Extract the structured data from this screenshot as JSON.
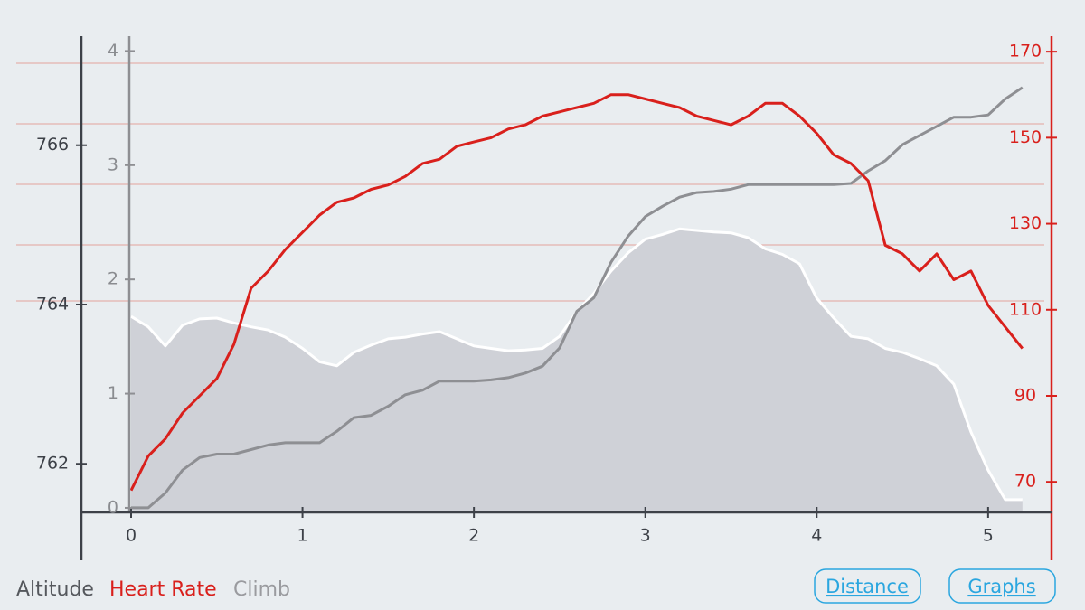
{
  "chart_data": {
    "type": "line",
    "x": [
      0,
      0.1,
      0.2,
      0.3,
      0.4,
      0.5,
      0.6,
      0.7,
      0.8,
      0.9,
      1.0,
      1.1,
      1.2,
      1.3,
      1.4,
      1.5,
      1.6,
      1.7,
      1.8,
      1.9,
      2.0,
      2.1,
      2.2,
      2.3,
      2.4,
      2.5,
      2.6,
      2.7,
      2.8,
      2.9,
      3.0,
      3.1,
      3.2,
      3.3,
      3.4,
      3.5,
      3.6,
      3.7,
      3.8,
      3.9,
      4.0,
      4.1,
      4.2,
      4.3,
      4.4,
      4.5,
      4.6,
      4.7,
      4.8,
      4.9,
      5.0,
      5.1,
      5.2
    ],
    "xlim": [
      0,
      5.37
    ],
    "xticks": [
      0,
      1,
      2,
      3,
      4,
      5
    ],
    "ylim": [
      761.39,
      767.37
    ],
    "yticks": [
      762,
      764,
      766
    ],
    "y2lim": [
      62.9,
      173.6
    ],
    "y2ticks": [
      70,
      90,
      110,
      130,
      150,
      170
    ],
    "y3lim": [
      -0.04,
      4.13
    ],
    "y3ticks": [
      0,
      1,
      2,
      3,
      4
    ],
    "series": [
      {
        "name": "Altitude",
        "color": "#ffffff",
        "fill": "#cfd1d7",
        "axis": "y",
        "values": [
          763.85,
          763.72,
          763.48,
          763.74,
          763.82,
          763.83,
          763.77,
          763.72,
          763.68,
          763.59,
          763.45,
          763.28,
          763.23,
          763.4,
          763.49,
          763.57,
          763.59,
          763.63,
          763.66,
          763.57,
          763.48,
          763.45,
          763.42,
          763.43,
          763.45,
          763.6,
          763.91,
          764.14,
          764.42,
          764.65,
          764.82,
          764.88,
          764.95,
          764.93,
          764.91,
          764.9,
          764.84,
          764.7,
          764.63,
          764.51,
          764.08,
          763.83,
          763.6,
          763.57,
          763.45,
          763.4,
          763.32,
          763.23,
          763.0,
          762.4,
          761.92,
          761.55,
          761.55
        ]
      },
      {
        "name": "Heart Rate",
        "color": "#d9201c",
        "axis": "y2",
        "values": [
          68,
          76,
          80,
          86,
          90,
          94,
          102,
          115,
          119,
          124,
          128,
          132,
          135,
          136,
          138,
          139,
          141,
          144,
          145,
          148,
          149,
          150,
          152,
          153,
          155,
          156,
          157,
          158,
          160,
          160,
          159,
          158,
          157,
          155,
          154,
          153,
          155,
          158,
          158,
          155,
          151,
          146,
          144,
          140,
          125,
          123,
          119,
          123,
          117,
          119,
          111,
          106,
          101
        ]
      },
      {
        "name": "Climb",
        "color": "#8e8f93",
        "axis": "y3",
        "values": [
          0,
          0,
          0.13,
          0.33,
          0.44,
          0.47,
          0.47,
          0.51,
          0.55,
          0.57,
          0.57,
          0.57,
          0.67,
          0.79,
          0.81,
          0.89,
          0.99,
          1.03,
          1.11,
          1.11,
          1.11,
          1.12,
          1.14,
          1.18,
          1.24,
          1.4,
          1.72,
          1.84,
          2.15,
          2.38,
          2.55,
          2.64,
          2.72,
          2.76,
          2.77,
          2.79,
          2.83,
          2.83,
          2.83,
          2.83,
          2.83,
          2.83,
          2.84,
          2.95,
          3.04,
          3.18,
          3.26,
          3.34,
          3.42,
          3.42,
          3.44,
          3.58,
          3.68
        ]
      }
    ]
  },
  "controls": {
    "buttons": [
      "Distance",
      "Graphs"
    ]
  }
}
